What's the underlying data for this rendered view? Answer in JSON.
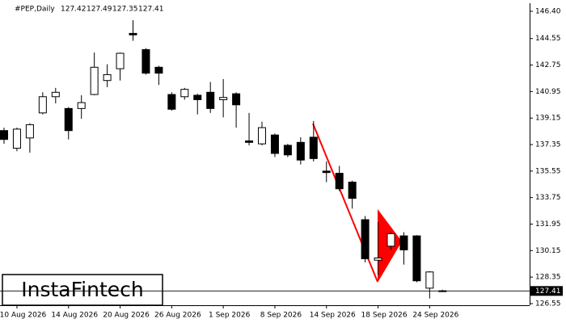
{
  "chart_data": {
    "type": "candlestick",
    "title": "#PEP,Daily",
    "categories": [
      null,
      "10 Aug 2026",
      null,
      null,
      null,
      "14 Aug 2026",
      null,
      null,
      null,
      "20 Aug 2026",
      null,
      null,
      null,
      "26 Aug 2026",
      null,
      null,
      null,
      "1 Sep 2026",
      null,
      null,
      null,
      "8 Sep 2026",
      null,
      null,
      null,
      "14 Sep 2026",
      null,
      null,
      null,
      "18 Sep 2026",
      null,
      null,
      null,
      "24 Sep 2026",
      null
    ],
    "open": [
      138.3,
      137.1,
      137.8,
      139.5,
      140.6,
      139.8,
      139.8,
      140.75,
      141.7,
      142.5,
      144.9,
      143.8,
      142.6,
      140.75,
      140.6,
      140.7,
      140.9,
      140.4,
      140.8,
      137.6,
      137.4,
      138.0,
      137.3,
      137.5,
      137.85,
      135.55,
      135.4,
      134.8,
      132.25,
      129.5,
      130.45,
      131.15,
      131.15,
      127.6,
      127.42
    ],
    "high": [
      138.5,
      138.5,
      138.8,
      140.9,
      141.2,
      139.9,
      140.7,
      143.6,
      142.8,
      143.6,
      145.8,
      143.9,
      142.7,
      140.9,
      141.2,
      140.8,
      141.6,
      141.8,
      140.9,
      139.5,
      138.9,
      138.1,
      137.4,
      137.85,
      138.95,
      136.2,
      135.9,
      134.9,
      132.5,
      132.1,
      131.4,
      131.4,
      131.2,
      128.75,
      127.49
    ],
    "low": [
      137.4,
      136.9,
      136.8,
      139.4,
      140.15,
      137.7,
      139.1,
      140.7,
      141.25,
      141.7,
      144.4,
      142.1,
      141.4,
      139.65,
      140.4,
      139.4,
      139.5,
      139.2,
      138.5,
      137.3,
      137.3,
      136.5,
      136.5,
      136.0,
      136.2,
      134.8,
      134.2,
      133.0,
      129.35,
      128.5,
      130.2,
      129.2,
      128.0,
      126.9,
      127.35
    ],
    "close": [
      137.7,
      138.4,
      138.7,
      140.6,
      140.9,
      138.3,
      140.2,
      142.6,
      142.1,
      143.55,
      144.8,
      142.2,
      142.2,
      139.75,
      141.1,
      140.4,
      139.8,
      140.55,
      140.05,
      137.5,
      138.5,
      136.75,
      136.65,
      136.3,
      136.4,
      135.45,
      134.35,
      133.7,
      129.6,
      129.65,
      131.3,
      130.2,
      128.1,
      128.7,
      127.41
    ],
    "up_color": "#ffffff",
    "down_color": "#000000",
    "pattern_color": "#ff0000",
    "ylim": [
      126.55,
      146.4
    ],
    "yticks": [
      {
        "value": 146.4,
        "label": "146.40"
      },
      144.55,
      142.75,
      140.95,
      139.15,
      137.35,
      135.55,
      133.75,
      131.95,
      130.15,
      128.35,
      126.55
    ],
    "logo": "InstaFintech"
  }
}
